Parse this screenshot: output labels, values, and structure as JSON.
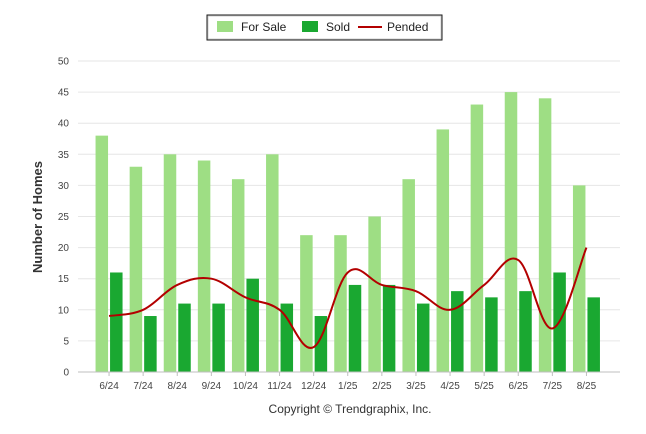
{
  "chart_data": {
    "type": "bar",
    "categories": [
      "6/24",
      "7/24",
      "8/24",
      "9/24",
      "10/24",
      "11/24",
      "12/24",
      "1/25",
      "2/25",
      "3/25",
      "4/25",
      "5/25",
      "6/25",
      "7/25",
      "8/25"
    ],
    "series": [
      {
        "name": "For Sale",
        "type": "bar",
        "color": "#9ede84",
        "values": [
          38,
          33,
          35,
          34,
          31,
          35,
          22,
          22,
          25,
          31,
          39,
          43,
          45,
          44,
          30
        ]
      },
      {
        "name": "Sold",
        "type": "bar",
        "color": "#1aa831",
        "values": [
          16,
          9,
          11,
          11,
          15,
          11,
          9,
          14,
          14,
          11,
          13,
          12,
          13,
          16,
          12
        ]
      },
      {
        "name": "Pended",
        "type": "line",
        "color": "#b30000",
        "values": [
          9,
          10,
          14,
          15,
          12,
          10,
          4,
          16,
          14,
          13,
          10,
          14,
          18,
          7,
          20
        ]
      }
    ],
    "title": "",
    "xlabel": "",
    "ylabel": "Number of Homes",
    "ylim": [
      0,
      50
    ],
    "yticks": [
      0,
      5,
      10,
      15,
      20,
      25,
      30,
      35,
      40,
      45,
      50
    ],
    "grid": true,
    "legend_position": "top-center"
  },
  "footer": {
    "copyright": "Copyright © Trendgraphix, Inc."
  }
}
